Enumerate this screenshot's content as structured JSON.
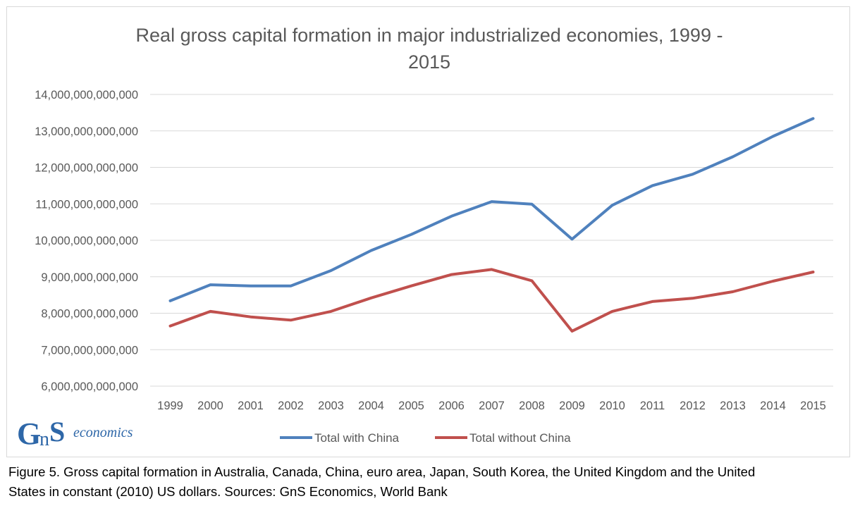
{
  "chart_data": {
    "type": "line",
    "title_lines": [
      "Real gross capital formation in major industrialized economies, 1999 -",
      "2015"
    ],
    "xlabel": "",
    "ylabel": "",
    "x": [
      "1999",
      "2000",
      "2001",
      "2002",
      "2003",
      "2004",
      "2005",
      "2006",
      "2007",
      "2008",
      "2009",
      "2010",
      "2011",
      "2012",
      "2013",
      "2014",
      "2015"
    ],
    "ylim": [
      6000000000000,
      14000000000000
    ],
    "y_ticks": [
      {
        "value": 6000000000000,
        "label": "6,000,000,000,000"
      },
      {
        "value": 7000000000000,
        "label": "7,000,000,000,000"
      },
      {
        "value": 8000000000000,
        "label": "8,000,000,000,000"
      },
      {
        "value": 9000000000000,
        "label": "9,000,000,000,000"
      },
      {
        "value": 10000000000000,
        "label": "10,000,000,000,000"
      },
      {
        "value": 11000000000000,
        "label": "11,000,000,000,000"
      },
      {
        "value": 12000000000000,
        "label": "12,000,000,000,000"
      },
      {
        "value": 13000000000000,
        "label": "13,000,000,000,000"
      },
      {
        "value": 14000000000000,
        "label": "14,000,000,000,000"
      }
    ],
    "grid": true,
    "legend_position": "bottom",
    "series": [
      {
        "name": "Total with China",
        "color": "#4f81bd",
        "values": [
          8340000000000,
          8780000000000,
          8750000000000,
          8750000000000,
          9170000000000,
          9720000000000,
          10160000000000,
          10660000000000,
          11060000000000,
          10990000000000,
          10030000000000,
          10960000000000,
          11500000000000,
          11810000000000,
          12290000000000,
          12850000000000,
          13340000000000
        ]
      },
      {
        "name": "Total without China",
        "color": "#c0504d",
        "values": [
          7650000000000,
          8050000000000,
          7900000000000,
          7810000000000,
          8050000000000,
          8420000000000,
          8750000000000,
          9060000000000,
          9200000000000,
          8890000000000,
          7510000000000,
          8050000000000,
          8320000000000,
          8410000000000,
          8590000000000,
          8880000000000,
          9130000000000
        ]
      }
    ]
  },
  "logo": {
    "mark": "GnS",
    "word": "economics",
    "color": "#2e67a8"
  },
  "caption": {
    "line1": "Figure 5. Gross capital formation in Australia, Canada, China, euro area, Japan, South Korea, the United Kingdom and the United",
    "line2": "States in constant (2010) US dollars. Sources: GnS Economics, World Bank"
  }
}
